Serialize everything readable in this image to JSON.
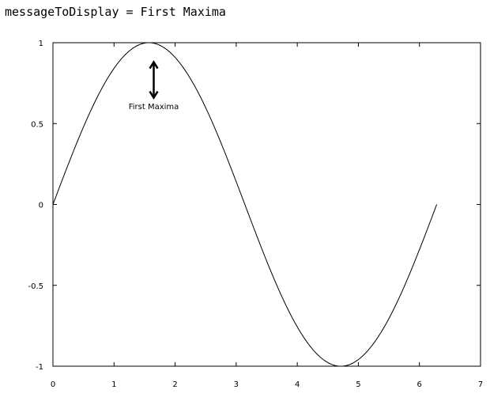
{
  "console": {
    "variable": "messageToDisplay",
    "operator": "=",
    "value": "First Maxima"
  },
  "chart_data": {
    "type": "line",
    "title": "",
    "xlabel": "",
    "ylabel": "",
    "xlim": [
      0,
      7
    ],
    "ylim": [
      -1,
      1
    ],
    "x_ticks": [
      0,
      1,
      2,
      3,
      4,
      5,
      6,
      7
    ],
    "y_ticks": [
      -1,
      -0.5,
      0,
      0.5,
      1
    ],
    "x_tick_labels": [
      "0",
      "1",
      "2",
      "3",
      "4",
      "5",
      "6",
      "7"
    ],
    "y_tick_labels": [
      "-1",
      "-0.5",
      "0",
      "0.5",
      "1"
    ],
    "grid": false,
    "series": [
      {
        "function": "sin(x)",
        "x": [
          0,
          0.25,
          0.5,
          0.75,
          1,
          1.25,
          1.5,
          1.5708,
          1.75,
          2,
          2.25,
          2.5,
          2.75,
          3,
          3.25,
          3.5,
          3.75,
          4,
          4.25,
          4.5,
          4.7124,
          4.75,
          5,
          5.25,
          5.5,
          5.75,
          6,
          6.2832
        ],
        "y": [
          0,
          0.2474,
          0.4794,
          0.6816,
          0.8415,
          0.949,
          0.9975,
          1,
          0.984,
          0.9093,
          0.7781,
          0.5985,
          0.3817,
          0.1411,
          -0.1082,
          -0.3508,
          -0.5716,
          -0.7568,
          -0.895,
          -0.9775,
          -1,
          -0.9993,
          -0.9589,
          -0.8589,
          -0.7055,
          -0.5083,
          -0.2794,
          0
        ],
        "color": "#000000"
      }
    ],
    "annotations": [
      {
        "text": "First Maxima",
        "arrow_x": 1.65,
        "arrow_top_y": 0.88,
        "arrow_bottom_y": 0.66,
        "text_x": 1.65,
        "text_y": 0.61
      }
    ]
  }
}
